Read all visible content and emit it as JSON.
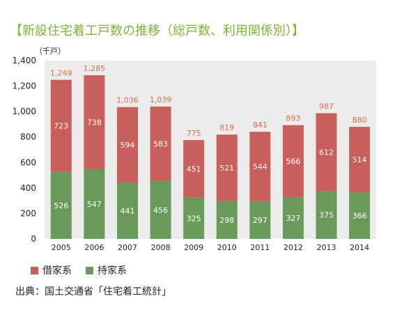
{
  "title": "【新設住宅着工戸数の推移（総戸数、利用関係別）】",
  "unit_label": "（千戸）",
  "source": "出典：国土交通省「住宅着工統計」",
  "colors": {
    "title": "#7ab534",
    "lease": "#c95f5c",
    "owned": "#6a9a5b",
    "plot_bg": "#ececec",
    "total_label": "#d4704e"
  },
  "chart_data": {
    "type": "bar",
    "stacked": true,
    "categories": [
      "2005",
      "2006",
      "2007",
      "2008",
      "2009",
      "2010",
      "2011",
      "2012",
      "2013",
      "2014"
    ],
    "series": [
      {
        "name": "持家系",
        "values": [
          526,
          547,
          441,
          456,
          325,
          298,
          297,
          327,
          375,
          366
        ]
      },
      {
        "name": "借家系",
        "values": [
          723,
          738,
          594,
          583,
          451,
          521,
          544,
          566,
          612,
          514
        ]
      }
    ],
    "totals": [
      "1,249",
      "1,285",
      "1,036",
      "1,039",
      "775",
      "819",
      "841",
      "893",
      "987",
      "880"
    ],
    "ylabel": "（千戸）",
    "ylim": [
      0,
      1400
    ],
    "yticks": [
      0,
      200,
      400,
      600,
      800,
      1000,
      1200,
      1400
    ],
    "ytick_labels": [
      "0",
      "200",
      "400",
      "600",
      "800",
      "1,000",
      "1,200",
      "1,400"
    ],
    "legend": [
      {
        "name": "借家系",
        "color": "#c95f5c"
      },
      {
        "name": "持家系",
        "color": "#6a9a5b"
      }
    ],
    "legend_position": "bottom-left",
    "grid": false
  }
}
